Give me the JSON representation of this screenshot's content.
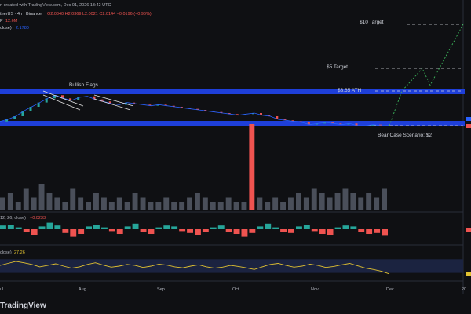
{
  "header": {
    "line1": "therUS · 4h · Binance",
    "line1_prefix": "n created with TradingView.com, Dec 01, 2026 13:42 UTC",
    "ohlc": "O2.0340 H2.0369 L2.0021 C2.0144 −0.0196 (−0.96%)",
    "indicator1_label": "P",
    "indicator1_value": "12.6M",
    "indicator2_label": "close)",
    "indicator2_value": "2.1780"
  },
  "annotations": {
    "target10": "$10 Target",
    "target5": "$5 Target",
    "ath": "$3.65 ATH",
    "bullish_flags": "Bullish Flags",
    "bear_case": "Bear Case Scenario: $2"
  },
  "macd_label": "12, 26, close)",
  "macd_value": "−0.0233",
  "rsi_label": "close)",
  "rsi_value": "27.26",
  "footer_brand": "TradingView",
  "colors": {
    "background": "#0f1013",
    "resistance_band": "#1e3fd9",
    "support_band": "#1e3fd9",
    "candle_up": "#26a69a",
    "candle_down": "#ef5350",
    "volume": "#4a4f5a",
    "projection": "#3bb35a",
    "rsi_line": "#e2c230",
    "rsi_band": "#1b2340"
  },
  "chart_data": {
    "type": "line",
    "x_ticks": [
      "ul",
      "Aug",
      "Sep",
      "Oct",
      "Nov",
      "Dec",
      "20"
    ],
    "price_series": {
      "name": "",
      "values": [
        2.2,
        2.3,
        2.45,
        2.7,
        2.9,
        3.1,
        3.3,
        3.45,
        3.3,
        3.2,
        3.35,
        3.4,
        3.25,
        3.15,
        3.05,
        3.0,
        3.1,
        3.05,
        3.0,
        2.95,
        3.0,
        2.95,
        2.9,
        2.85,
        2.8,
        2.75,
        2.7,
        2.65,
        2.6,
        2.55,
        2.5,
        2.55,
        2.6,
        2.5,
        2.45,
        2.3,
        2.25,
        2.2,
        2.15,
        2.05,
        2.1,
        2.15,
        2.1,
        2.05,
        2.1,
        2.0,
        2.0,
        2.05,
        2.0,
        2.01
      ]
    },
    "projection_path": [
      {
        "label": "Dec",
        "value": 2.0
      },
      {
        "label": "",
        "value": 3.65
      },
      {
        "label": "",
        "value": 5.0
      },
      {
        "label": "",
        "value": 4.0
      },
      {
        "label": "",
        "value": 10.0
      }
    ],
    "levels": {
      "ten_target": 10,
      "five_target": 5,
      "ath": 3.65,
      "support": 2.15,
      "bear_case": 2
    },
    "volume": [
      3,
      4,
      2,
      5,
      3,
      6,
      4,
      3,
      2,
      5,
      3,
      2,
      4,
      3,
      2,
      3,
      2,
      4,
      3,
      2,
      2,
      3,
      2,
      2,
      3,
      4,
      3,
      2,
      2,
      3,
      2,
      2,
      20,
      3,
      2,
      3,
      2,
      3,
      4,
      3,
      5,
      4,
      3,
      4,
      5,
      4,
      3,
      4,
      3,
      5
    ],
    "macd_histogram": [
      0.4,
      0.5,
      0.2,
      -0.3,
      -0.6,
      0.3,
      0.7,
      0.4,
      -0.4,
      -0.8,
      -0.5,
      0.3,
      0.5,
      0.2,
      -0.2,
      -0.5,
      0.3,
      0.6,
      -0.3,
      -0.5,
      0.2,
      0.4,
      0.3,
      -0.2,
      -0.4,
      -0.6,
      -0.3,
      0.2,
      0.4,
      -0.3,
      -0.5,
      -0.8,
      -0.4,
      0.3,
      0.6,
      0.2,
      -0.3,
      -0.4,
      0.3,
      0.5,
      -0.2,
      -0.5,
      -0.6,
      0.2,
      0.4,
      0.3,
      -0.3,
      -0.5,
      -0.4,
      -0.7
    ],
    "rsi": [
      52,
      58,
      64,
      60,
      55,
      48,
      52,
      57,
      50,
      44,
      48,
      55,
      60,
      53,
      47,
      50,
      55,
      52,
      46,
      50,
      56,
      53,
      48,
      45,
      50,
      54,
      48,
      44,
      47,
      52,
      49,
      45,
      40,
      48,
      55,
      58,
      52,
      47,
      50,
      56,
      52,
      46,
      49,
      54,
      58,
      51,
      44,
      40,
      35,
      27.26
    ],
    "rsi_band": [
      30,
      70
    ]
  }
}
